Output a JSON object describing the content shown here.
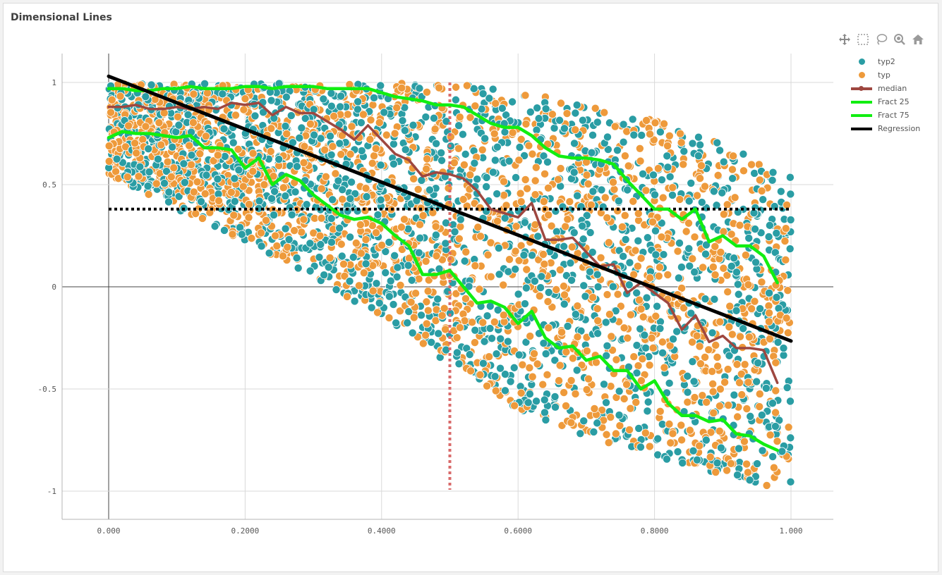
{
  "title": "Dimensional Lines",
  "toolbar": [
    {
      "name": "pan-icon"
    },
    {
      "name": "lasso-select-icon"
    },
    {
      "name": "lasso-comment-icon"
    },
    {
      "name": "zoom-icon"
    },
    {
      "name": "home-icon"
    }
  ],
  "colors": {
    "typ2": "#2a9da4",
    "typ": "#ee9a3b",
    "median": "#9e4740",
    "fract": "#11ee11",
    "regression": "#000000",
    "ref_h": "#000000",
    "ref_v": "#d96a6a"
  },
  "chart_data": {
    "type": "scatter",
    "title": "Dimensional Lines",
    "xlabel": "",
    "ylabel": "",
    "xlim": [
      -0.034,
      1.06
    ],
    "ylim": [
      -1.11,
      1.15
    ],
    "x_ticks": [
      "0.000",
      "0.2000",
      "0.4000",
      "0.6000",
      "0.8000",
      "1.000"
    ],
    "x_tick_values": [
      0,
      0.2,
      0.4,
      0.6,
      0.8,
      1.0
    ],
    "y_ticks": [
      "1",
      "0.5",
      "0",
      "-0.5",
      "-1"
    ],
    "y_tick_values": [
      1,
      0.5,
      0,
      -0.5,
      -1
    ],
    "grid": true,
    "legend_position": "right",
    "legend": [
      "typ2",
      "typ",
      "median",
      "Fract 25",
      "Fract 75",
      "Regression"
    ],
    "scatter_region": {
      "description_series": [
        "typ2",
        "typ"
      ],
      "x_range": [
        0,
        1
      ],
      "upper_bound": [
        [
          0,
          1
        ],
        [
          0.2,
          1
        ],
        [
          0.4,
          1
        ],
        [
          0.5,
          1
        ],
        [
          0.6,
          0.96
        ],
        [
          0.7,
          0.9
        ],
        [
          0.8,
          0.82
        ],
        [
          0.9,
          0.7
        ],
        [
          1.0,
          0.55
        ]
      ],
      "lower_bound": [
        [
          0,
          0.55
        ],
        [
          0.1,
          0.38
        ],
        [
          0.2,
          0.22
        ],
        [
          0.3,
          0.05
        ],
        [
          0.4,
          -0.15
        ],
        [
          0.5,
          -0.38
        ],
        [
          0.6,
          -0.6
        ],
        [
          0.7,
          -0.73
        ],
        [
          0.8,
          -0.84
        ],
        [
          0.9,
          -0.93
        ],
        [
          1.0,
          -1.0
        ]
      ]
    },
    "series": [
      {
        "name": "median",
        "type": "line",
        "points": [
          [
            0,
            0.88
          ],
          [
            0.02,
            0.88
          ],
          [
            0.04,
            0.89
          ],
          [
            0.06,
            0.87
          ],
          [
            0.08,
            0.87
          ],
          [
            0.1,
            0.88
          ],
          [
            0.12,
            0.87
          ],
          [
            0.14,
            0.88
          ],
          [
            0.16,
            0.87
          ],
          [
            0.18,
            0.9
          ],
          [
            0.2,
            0.89
          ],
          [
            0.22,
            0.9
          ],
          [
            0.24,
            0.84
          ],
          [
            0.26,
            0.88
          ],
          [
            0.28,
            0.85
          ],
          [
            0.3,
            0.85
          ],
          [
            0.32,
            0.81
          ],
          [
            0.34,
            0.77
          ],
          [
            0.36,
            0.72
          ],
          [
            0.38,
            0.79
          ],
          [
            0.4,
            0.72
          ],
          [
            0.42,
            0.65
          ],
          [
            0.44,
            0.62
          ],
          [
            0.46,
            0.54
          ],
          [
            0.48,
            0.56
          ],
          [
            0.5,
            0.55
          ],
          [
            0.52,
            0.53
          ],
          [
            0.54,
            0.47
          ],
          [
            0.56,
            0.38
          ],
          [
            0.58,
            0.36
          ],
          [
            0.6,
            0.34
          ],
          [
            0.62,
            0.41
          ],
          [
            0.64,
            0.23
          ],
          [
            0.66,
            0.23
          ],
          [
            0.68,
            0.24
          ],
          [
            0.7,
            0.17
          ],
          [
            0.72,
            0.1
          ],
          [
            0.74,
            0.11
          ],
          [
            0.76,
            -0.03
          ],
          [
            0.78,
            0.02
          ],
          [
            0.8,
            -0.03
          ],
          [
            0.82,
            -0.08
          ],
          [
            0.84,
            -0.21
          ],
          [
            0.86,
            -0.14
          ],
          [
            0.88,
            -0.27
          ],
          [
            0.9,
            -0.24
          ],
          [
            0.92,
            -0.3
          ],
          [
            0.94,
            -0.3
          ],
          [
            0.96,
            -0.31
          ],
          [
            0.98,
            -0.47
          ]
        ]
      },
      {
        "name": "Fract 25",
        "type": "line",
        "points": [
          [
            0,
            0.97
          ],
          [
            0.02,
            0.97
          ],
          [
            0.04,
            0.96
          ],
          [
            0.06,
            0.96
          ],
          [
            0.08,
            0.97
          ],
          [
            0.1,
            0.97
          ],
          [
            0.12,
            0.98
          ],
          [
            0.14,
            0.97
          ],
          [
            0.16,
            0.97
          ],
          [
            0.18,
            0.97
          ],
          [
            0.2,
            0.98
          ],
          [
            0.22,
            0.98
          ],
          [
            0.24,
            0.97
          ],
          [
            0.26,
            0.98
          ],
          [
            0.28,
            0.98
          ],
          [
            0.3,
            0.98
          ],
          [
            0.32,
            0.97
          ],
          [
            0.34,
            0.97
          ],
          [
            0.36,
            0.97
          ],
          [
            0.38,
            0.97
          ],
          [
            0.4,
            0.95
          ],
          [
            0.42,
            0.93
          ],
          [
            0.44,
            0.92
          ],
          [
            0.46,
            0.91
          ],
          [
            0.48,
            0.89
          ],
          [
            0.5,
            0.89
          ],
          [
            0.52,
            0.88
          ],
          [
            0.54,
            0.84
          ],
          [
            0.56,
            0.8
          ],
          [
            0.58,
            0.78
          ],
          [
            0.6,
            0.78
          ],
          [
            0.62,
            0.74
          ],
          [
            0.64,
            0.68
          ],
          [
            0.66,
            0.64
          ],
          [
            0.68,
            0.63
          ],
          [
            0.7,
            0.63
          ],
          [
            0.72,
            0.62
          ],
          [
            0.74,
            0.6
          ],
          [
            0.76,
            0.52
          ],
          [
            0.78,
            0.45
          ],
          [
            0.8,
            0.38
          ],
          [
            0.82,
            0.38
          ],
          [
            0.84,
            0.33
          ],
          [
            0.86,
            0.38
          ],
          [
            0.88,
            0.22
          ],
          [
            0.9,
            0.25
          ],
          [
            0.92,
            0.2
          ],
          [
            0.94,
            0.2
          ],
          [
            0.96,
            0.15
          ],
          [
            0.98,
            0.02
          ]
        ]
      },
      {
        "name": "Fract 75",
        "type": "line",
        "points": [
          [
            0,
            0.73
          ],
          [
            0.02,
            0.76
          ],
          [
            0.04,
            0.75
          ],
          [
            0.06,
            0.75
          ],
          [
            0.08,
            0.74
          ],
          [
            0.1,
            0.73
          ],
          [
            0.12,
            0.74
          ],
          [
            0.14,
            0.68
          ],
          [
            0.16,
            0.68
          ],
          [
            0.18,
            0.67
          ],
          [
            0.2,
            0.58
          ],
          [
            0.22,
            0.63
          ],
          [
            0.24,
            0.5
          ],
          [
            0.26,
            0.55
          ],
          [
            0.28,
            0.52
          ],
          [
            0.3,
            0.45
          ],
          [
            0.32,
            0.4
          ],
          [
            0.34,
            0.35
          ],
          [
            0.36,
            0.33
          ],
          [
            0.38,
            0.34
          ],
          [
            0.4,
            0.31
          ],
          [
            0.42,
            0.25
          ],
          [
            0.44,
            0.2
          ],
          [
            0.46,
            0.06
          ],
          [
            0.48,
            0.06
          ],
          [
            0.5,
            0.08
          ],
          [
            0.52,
            0.0
          ],
          [
            0.54,
            -0.08
          ],
          [
            0.56,
            -0.07
          ],
          [
            0.58,
            -0.1
          ],
          [
            0.6,
            -0.18
          ],
          [
            0.62,
            -0.12
          ],
          [
            0.64,
            -0.25
          ],
          [
            0.66,
            -0.3
          ],
          [
            0.68,
            -0.29
          ],
          [
            0.7,
            -0.36
          ],
          [
            0.72,
            -0.34
          ],
          [
            0.74,
            -0.41
          ],
          [
            0.76,
            -0.41
          ],
          [
            0.78,
            -0.5
          ],
          [
            0.8,
            -0.46
          ],
          [
            0.82,
            -0.57
          ],
          [
            0.84,
            -0.63
          ],
          [
            0.86,
            -0.63
          ],
          [
            0.88,
            -0.66
          ],
          [
            0.9,
            -0.65
          ],
          [
            0.92,
            -0.72
          ],
          [
            0.94,
            -0.73
          ],
          [
            0.96,
            -0.77
          ],
          [
            0.98,
            -0.8
          ]
        ]
      },
      {
        "name": "Regression",
        "type": "line",
        "points": [
          [
            0,
            1.03
          ],
          [
            1.0,
            -0.265
          ]
        ]
      }
    ],
    "reference_lines": [
      {
        "orientation": "horizontal",
        "value": 0.38,
        "style": "dotted"
      },
      {
        "orientation": "vertical",
        "value": 0.5,
        "style": "dotted"
      }
    ]
  }
}
